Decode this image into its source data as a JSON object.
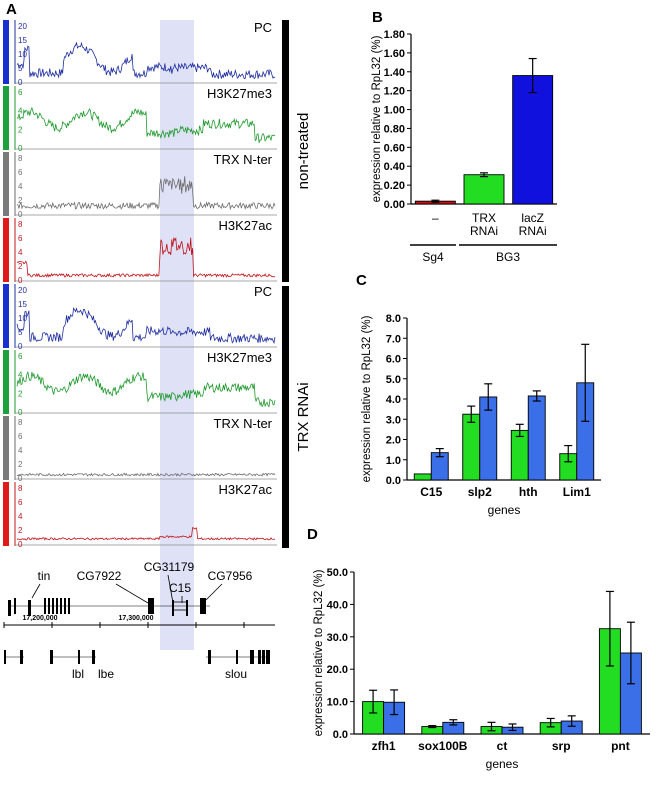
{
  "panel_a": {
    "letter": "A",
    "conditions": [
      "non-treated",
      "TRX RNAi"
    ],
    "tracks": [
      {
        "label": "PC",
        "color": "#1f2ea0",
        "bar_color": "#1a2fd0",
        "ticks": [
          "20",
          "15",
          "10",
          "5",
          "0"
        ],
        "max": 20,
        "enrich": "pc",
        "condition": 0
      },
      {
        "label": "H3K27me3",
        "color": "#1f9a2e",
        "bar_color": "#1ea03c",
        "ticks": [
          "6",
          "4",
          "2",
          "0"
        ],
        "max": 7,
        "enrich": "k27me3",
        "condition": 0
      },
      {
        "label": "TRX  N-ter",
        "color": "#6e6e6e",
        "bar_color": "#7a7a7a",
        "ticks": [
          "8",
          "6",
          "4",
          "2",
          "0"
        ],
        "max": 9,
        "enrich": "trx",
        "condition": 0
      },
      {
        "label": "H3K27ac",
        "color": "#c0141a",
        "bar_color": "#e01a1a",
        "ticks": [
          "8",
          "6",
          "4",
          "2",
          "0"
        ],
        "max": 9,
        "enrich": "k27ac",
        "condition": 0
      },
      {
        "label": "PC",
        "color": "#1f2ea0",
        "bar_color": "#1a2fd0",
        "ticks": [
          "20",
          "15",
          "10",
          "5",
          "0"
        ],
        "max": 20,
        "enrich": "pc",
        "condition": 1
      },
      {
        "label": "H3K27me3",
        "color": "#1f9a2e",
        "bar_color": "#1ea03c",
        "ticks": [
          "6",
          "4",
          "2",
          "0"
        ],
        "max": 7,
        "enrich": "k27me3",
        "condition": 1
      },
      {
        "label": "TRX  N-ter",
        "color": "#6e6e6e",
        "bar_color": "#7a7a7a",
        "ticks": [
          "8",
          "6",
          "4",
          "2",
          "0"
        ],
        "max": 9,
        "enrich": "flat",
        "condition": 1
      },
      {
        "label": "H3K27ac",
        "color": "#c0141a",
        "bar_color": "#e01a1a",
        "ticks": [
          "8",
          "6",
          "4",
          "2",
          "0"
        ],
        "max": 9,
        "enrich": "flatac",
        "condition": 1
      }
    ],
    "genes_top": [
      "tin",
      "CG7922",
      "CG31179",
      "C15",
      "CG7956"
    ],
    "genes_bottom": [
      "lbl",
      "lbe",
      "slou"
    ],
    "coordinates": [
      "17,200,000",
      "17,300,000"
    ],
    "highlight_color": "#dfe1f7"
  },
  "chart_data": [
    {
      "panel": "B",
      "type": "bar",
      "categories": [
        "–",
        "TRX RNAi",
        "lacZ RNAi"
      ],
      "series": [
        {
          "name": "bar",
          "values": [
            0.03,
            0.31,
            1.36
          ],
          "errors": [
            0.01,
            0.02,
            0.18
          ],
          "colors": [
            "#cc1111",
            "#22dd22",
            "#1111dd"
          ]
        }
      ],
      "ylabel": "expression relative to RpL32 (%)",
      "ylim": [
        0,
        1.8
      ],
      "yticks": [
        "0.00",
        "0.20",
        "0.40",
        "0.60",
        "0.80",
        "1.00",
        "1.20",
        "1.40",
        "1.60",
        "1.80"
      ],
      "groups": [
        "Sg4",
        "BG3"
      ]
    },
    {
      "panel": "C",
      "type": "bar",
      "categories": [
        "C15",
        "slp2",
        "hth",
        "Lim1"
      ],
      "series": [
        {
          "name": "green",
          "color": "#22dd22",
          "values": [
            0.3,
            3.25,
            2.45,
            1.3
          ],
          "errors": [
            0.0,
            0.4,
            0.3,
            0.4
          ]
        },
        {
          "name": "blue",
          "color": "#3b6fe8",
          "values": [
            1.35,
            4.1,
            4.15,
            4.8
          ],
          "errors": [
            0.2,
            0.65,
            0.25,
            1.9
          ]
        }
      ],
      "xlabel": "genes",
      "ylabel": "expression relative to RpL32 (%)",
      "ylim": [
        0,
        8
      ],
      "yticks": [
        "0.0",
        "1.0",
        "2.0",
        "3.0",
        "4.0",
        "5.0",
        "6.0",
        "7.0",
        "8.0"
      ]
    },
    {
      "panel": "D",
      "type": "bar",
      "categories": [
        "zfh1",
        "sox100B",
        "ct",
        "srp",
        "pnt"
      ],
      "series": [
        {
          "name": "green",
          "color": "#22dd22",
          "values": [
            10.0,
            2.3,
            2.3,
            3.5,
            32.5
          ],
          "errors": [
            3.5,
            0.3,
            1.3,
            1.3,
            11.5
          ]
        },
        {
          "name": "blue",
          "color": "#3b6fe8",
          "values": [
            9.8,
            3.6,
            2.1,
            4.0,
            25.0
          ],
          "errors": [
            3.8,
            0.8,
            1.0,
            1.6,
            9.5
          ]
        }
      ],
      "xlabel": "genes",
      "ylabel": "expression relative to RpL32 (%)",
      "ylim": [
        0,
        50
      ],
      "yticks": [
        "0.0",
        "10.0",
        "20.0",
        "30.0",
        "40.0",
        "50.0"
      ]
    }
  ]
}
